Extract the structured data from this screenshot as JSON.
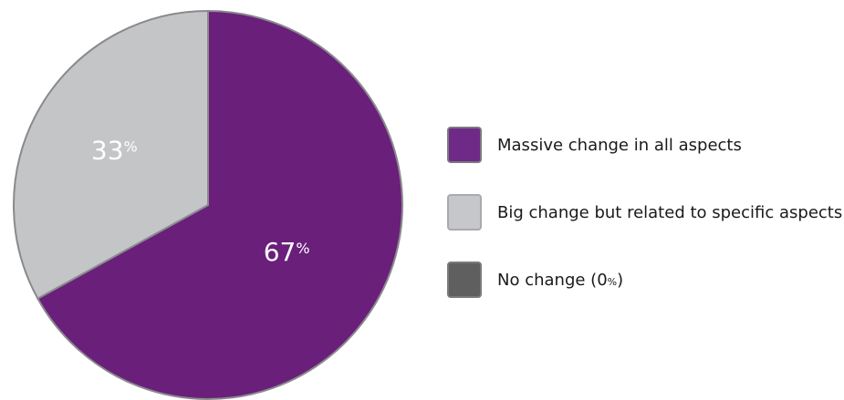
{
  "chart_data": {
    "type": "pie",
    "slices": [
      {
        "label": "Massive change in all aspects",
        "value": 67,
        "display": "67",
        "color": "#6a1f7a",
        "legend_color": "#6e2a86"
      },
      {
        "label": "Big change but related to specific aspects",
        "value": 33,
        "display": "33",
        "color": "#c4c5c7",
        "legend_color": "#c6c7ca"
      },
      {
        "label": "No change",
        "value": 0,
        "display": "0",
        "color": "#5f5f5f",
        "legend_color": "#5f5f5f"
      }
    ],
    "percent_sign": "%",
    "legend_placement": "right"
  },
  "legend": {
    "items": [
      {
        "label": "Massive change in all aspects",
        "suffix_open": "",
        "value": "",
        "suffix_close": ""
      },
      {
        "label": "Big change but related to specific aspects",
        "suffix_open": "",
        "value": "",
        "suffix_close": ""
      },
      {
        "label": "No change",
        "suffix_open": " (",
        "value": "0",
        "pct": "%",
        "suffix_close": ")"
      }
    ]
  }
}
